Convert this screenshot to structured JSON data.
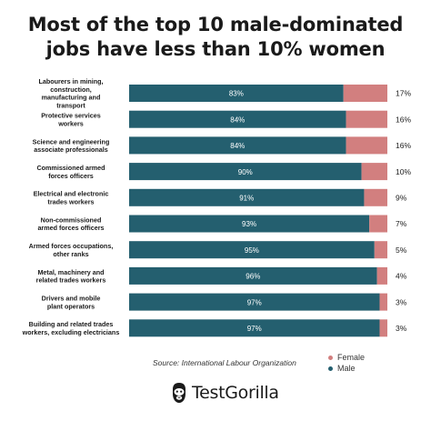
{
  "title_lines": [
    "Most of the top 10 male-dominated",
    "jobs have less than 10% women"
  ],
  "source": "Source: International Labour Organization",
  "brand": "TestGorilla",
  "colors": {
    "male": "#245f6f",
    "female": "#d27f7f",
    "text": "#1a1a1a"
  },
  "legend": {
    "female": "Female",
    "male": "Male"
  },
  "chart_data": {
    "type": "bar",
    "orientation": "horizontal",
    "stacked": true,
    "categories": [
      [
        "Labourers in mining,",
        "construction,",
        "manufacturing and",
        "transport"
      ],
      [
        "Protective services",
        "workers"
      ],
      [
        "Science and engineering",
        "associate professionals"
      ],
      [
        "Commissioned armed",
        "forces officers"
      ],
      [
        "Electrical and electronic",
        "trades workers"
      ],
      [
        "Non-commissioned",
        "armed forces officers"
      ],
      [
        "Armed forces occupations,",
        "other ranks"
      ],
      [
        "Metal, machinery and",
        "related trades workers"
      ],
      [
        "Drivers and mobile",
        "plant operators"
      ],
      [
        "Building and related trades",
        "workers, excluding electricians"
      ]
    ],
    "series": [
      {
        "name": "Male",
        "values": [
          83,
          84,
          84,
          90,
          91,
          93,
          95,
          96,
          97,
          97
        ]
      },
      {
        "name": "Female",
        "values": [
          17,
          16,
          16,
          10,
          9,
          7,
          5,
          4,
          3,
          3
        ]
      }
    ],
    "xlim": [
      0,
      100
    ],
    "unit": "%"
  }
}
